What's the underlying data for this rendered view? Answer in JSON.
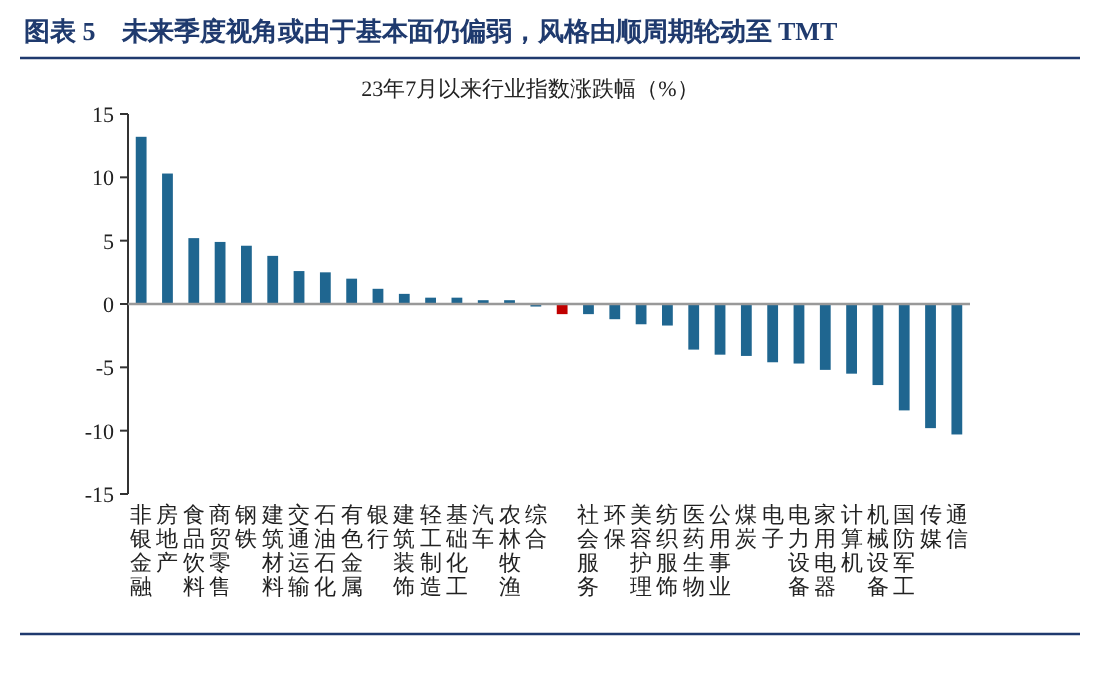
{
  "chart_data": {
    "type": "bar",
    "title": "图表 5　未来季度视角或由于基本面仍偏弱，风格由顺周期轮动至 TMT",
    "subtitle": "23年7月以来行业指数涨跌幅（%）",
    "categories": [
      "非银金融",
      "房地产",
      "食品饮料",
      "商贸零售",
      "钢铁",
      "建筑材料",
      "交通运输",
      "石油石化",
      "有色金属",
      "银行",
      "建筑装饰",
      "轻工制造",
      "基础化工",
      "汽车",
      "农林牧渔",
      "综合",
      null,
      "社会服务",
      "环保",
      "美容护理",
      "纺织服饰",
      "医药生物",
      "公用事业",
      "煤炭",
      "电子",
      "电力设备",
      "家用电器",
      "计算机",
      "机械设备",
      "国防军工",
      "传媒",
      "通信"
    ],
    "values": [
      13.2,
      10.3,
      5.2,
      4.9,
      4.6,
      3.8,
      2.6,
      2.5,
      2.0,
      1.2,
      0.8,
      0.5,
      0.5,
      0.3,
      0.3,
      -0.2,
      -0.8,
      -0.8,
      -1.2,
      -1.6,
      -1.7,
      -3.6,
      -4.0,
      -4.1,
      -4.6,
      -4.7,
      -5.2,
      -5.5,
      -6.4,
      -8.4,
      -9.8,
      -10.3
    ],
    "colors": [
      "#1f6690",
      "#1f6690",
      "#1f6690",
      "#1f6690",
      "#1f6690",
      "#1f6690",
      "#1f6690",
      "#1f6690",
      "#1f6690",
      "#1f6690",
      "#1f6690",
      "#1f6690",
      "#1f6690",
      "#1f6690",
      "#1f6690",
      "#1f6690",
      "#c00000",
      "#1f6690",
      "#1f6690",
      "#1f6690",
      "#1f6690",
      "#1f6690",
      "#1f6690",
      "#1f6690",
      "#1f6690",
      "#1f6690",
      "#1f6690",
      "#1f6690",
      "#1f6690",
      "#1f6690",
      "#1f6690",
      "#1f6690"
    ],
    "ylim": [
      -15,
      15
    ],
    "yticks": [
      -15,
      -10,
      -5,
      0,
      5,
      10,
      15
    ]
  }
}
